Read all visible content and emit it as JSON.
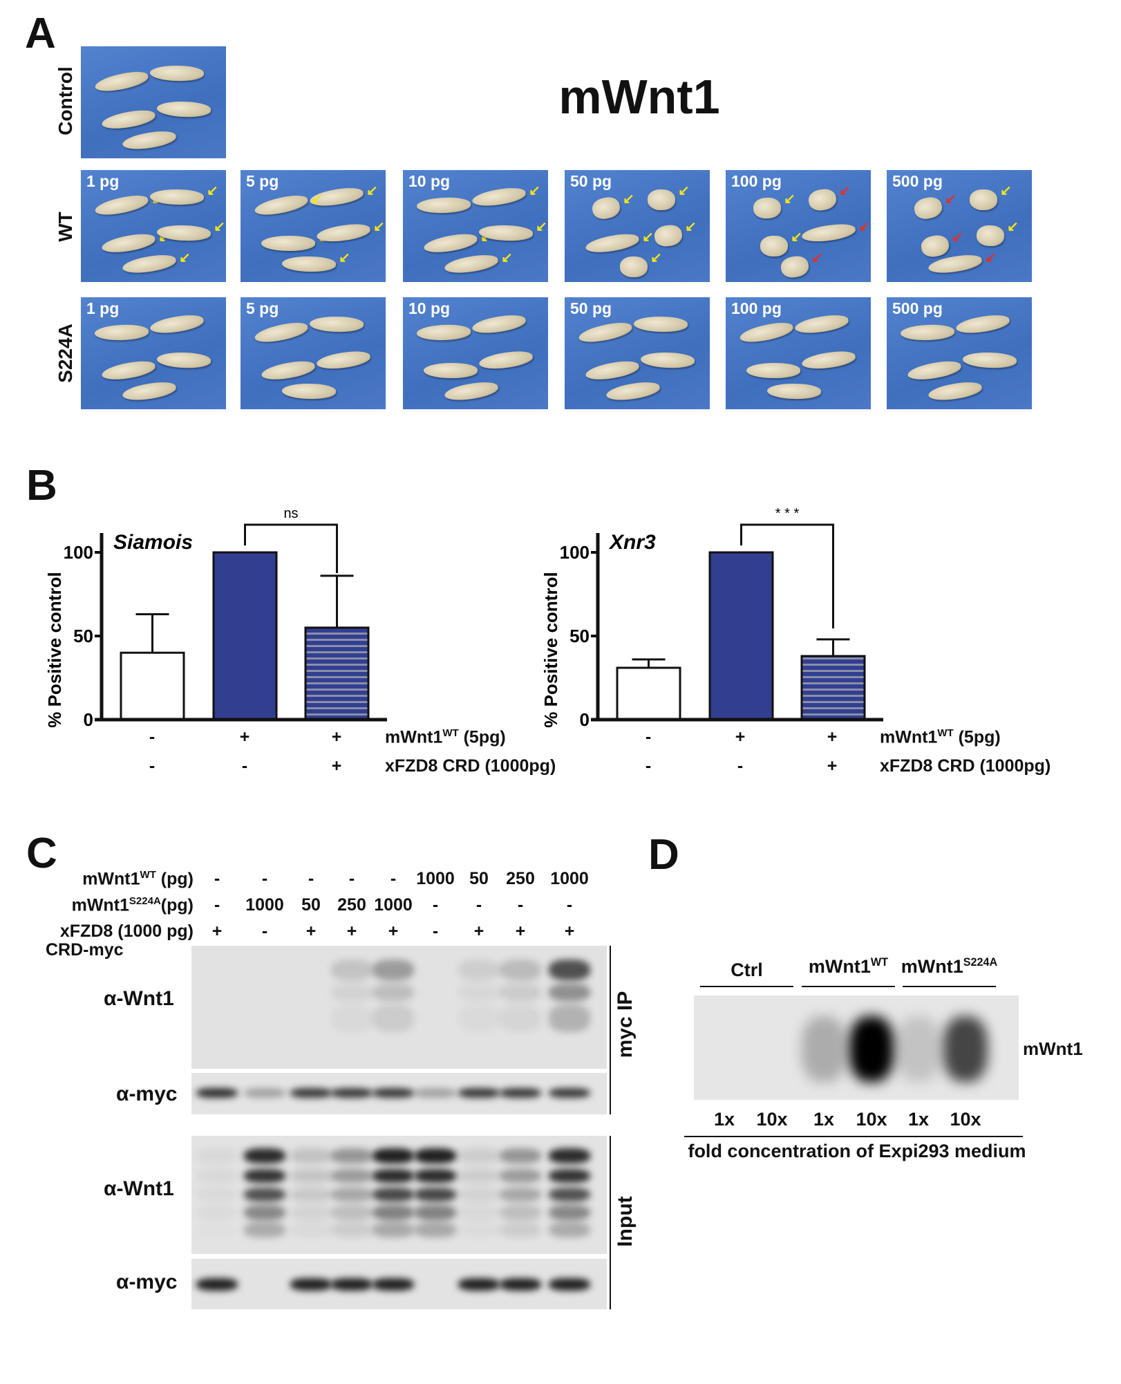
{
  "panelA": {
    "letter": "A",
    "title": "mWnt1",
    "row_labels": {
      "control": "Control",
      "wt": "WT",
      "s224a": "S224A"
    },
    "doses": [
      "1 pg",
      "5 pg",
      "10 pg",
      "50 pg",
      "100 pg",
      "500 pg"
    ],
    "arrow_colors": {
      "yellow": "#f2e51a",
      "red": "#e0302a",
      "black": "#111111"
    },
    "photo_color": "#4a78c6"
  },
  "panelB": {
    "letter": "B",
    "condition_labels": {
      "row1": "mWnt1",
      "row1_sup": "WT",
      "row1_suffix": " (5pg)",
      "row2": "xFZD8 CRD (1000pg)"
    },
    "conditions_row1": [
      "-",
      "+",
      "+"
    ],
    "conditions_row2": [
      "-",
      "-",
      "+"
    ]
  },
  "chart_data": [
    {
      "type": "bar",
      "title": "Siamois",
      "ylabel": "% Positive control",
      "ylim": [
        0,
        100
      ],
      "yticks": [
        "0",
        "50",
        "100"
      ],
      "values": [
        40,
        100,
        55
      ],
      "errors": [
        23,
        0,
        31
      ],
      "bar_styles": [
        "white",
        "solid-blue",
        "striped-blue"
      ],
      "significance": {
        "between": [
          2,
          3
        ],
        "label": "ns"
      },
      "colors": {
        "blue": "#323f91",
        "stripe": "#8a8fa8"
      }
    },
    {
      "type": "bar",
      "title": "Xnr3",
      "ylabel": "% Positive control",
      "ylim": [
        0,
        100
      ],
      "yticks": [
        "0",
        "50",
        "100"
      ],
      "values": [
        31,
        100,
        38
      ],
      "errors": [
        5,
        0,
        10
      ],
      "bar_styles": [
        "white",
        "solid-blue",
        "striped-blue"
      ],
      "significance": {
        "between": [
          2,
          3
        ],
        "label": "* * *"
      },
      "colors": {
        "blue": "#323f91",
        "stripe": "#8a8fa8"
      }
    }
  ],
  "panelC": {
    "letter": "C",
    "rows": [
      {
        "label": "mWnt1",
        "sup": "WT",
        "suffix": " (pg)",
        "values": [
          "-",
          "-",
          "-",
          "-",
          "-",
          "1000",
          "50",
          "250",
          "1000"
        ]
      },
      {
        "label": "mWnt1",
        "sup": "S224A",
        "suffix": "(pg)",
        "values": [
          "-",
          "1000",
          "50",
          "250",
          "1000",
          "-",
          "-",
          "-",
          "-"
        ]
      },
      {
        "label": "xFZD8 (1000 pg)",
        "sup": "",
        "suffix": "",
        "values": [
          "+",
          "-",
          "+",
          "+",
          "+",
          "-",
          "+",
          "+",
          "+"
        ]
      }
    ],
    "row4_label": "CRD-myc",
    "blot_labels": [
      "α-Wnt1",
      "α-myc",
      "α-Wnt1",
      "α-myc"
    ],
    "side_labels": {
      "ip": "myc IP",
      "input": "Input"
    },
    "band_intensity": {
      "ip_wnt1": [
        0,
        0,
        0,
        0.15,
        0.35,
        0,
        0.1,
        0.2,
        0.75
      ],
      "ip_myc": [
        0.85,
        0.3,
        0.8,
        0.8,
        0.8,
        0.3,
        0.8,
        0.8,
        0.8
      ],
      "input_wnt1": [
        0.05,
        0.85,
        0.15,
        0.35,
        0.9,
        0.9,
        0.1,
        0.35,
        0.85
      ],
      "input_myc": [
        0.9,
        0,
        0.9,
        0.9,
        0.9,
        0,
        0.9,
        0.9,
        0.9
      ]
    }
  },
  "panelD": {
    "letter": "D",
    "groups": [
      {
        "label": "Ctrl",
        "sup": ""
      },
      {
        "label": "mWnt1",
        "sup": "WT"
      },
      {
        "label": "mWnt1",
        "sup": "S224A"
      }
    ],
    "lanes": [
      "1x",
      "10x",
      "1x",
      "10x",
      "1x",
      "10x"
    ],
    "band_label": "mWnt1",
    "caption": "fold concentration of Expi293 medium",
    "band_intensity": [
      0,
      0,
      0.25,
      1.0,
      0.15,
      0.7
    ]
  }
}
